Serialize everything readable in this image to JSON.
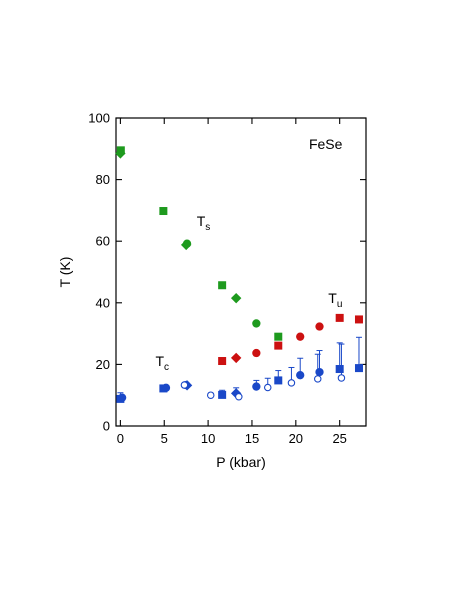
{
  "chart_data": {
    "type": "scatter",
    "xlabel": "P (kbar)",
    "ylabel": "T (K)",
    "xlim": [
      -0.5,
      28
    ],
    "ylim": [
      0,
      100
    ],
    "xticks": [
      0,
      5,
      10,
      15,
      20,
      25
    ],
    "yticks": [
      0,
      20,
      40,
      60,
      80,
      100
    ],
    "grid": false,
    "annotations": [
      {
        "text": "FeSe",
        "sub": "",
        "x": 21.5,
        "y": 90
      },
      {
        "text": "T",
        "sub": "s",
        "x": 8.7,
        "y": 65
      },
      {
        "text": "T",
        "sub": "u",
        "x": 23.7,
        "y": 40
      },
      {
        "text": "T",
        "sub": "c",
        "x": 4.0,
        "y": 19.5
      }
    ],
    "colors": {
      "Ts": "#1e9a1e",
      "Tu": "#cc1111",
      "Tc": "#1a48c8"
    },
    "series": [
      {
        "group": "Ts",
        "marker": "square",
        "filled": true,
        "points": [
          [
            0.05,
            89.5
          ],
          [
            4.9,
            69.8
          ],
          [
            11.6,
            45.7
          ],
          [
            18.0,
            29.0
          ]
        ]
      },
      {
        "group": "Ts",
        "marker": "diamond",
        "filled": true,
        "points": [
          [
            0.0,
            88.5
          ],
          [
            7.5,
            58.8
          ],
          [
            13.2,
            41.5
          ]
        ]
      },
      {
        "group": "Ts",
        "marker": "circle",
        "filled": true,
        "points": [
          [
            7.6,
            59.2
          ],
          [
            15.5,
            33.3
          ]
        ]
      },
      {
        "group": "Tu",
        "marker": "square",
        "filled": true,
        "points": [
          [
            11.6,
            21.1
          ],
          [
            18.0,
            26.1
          ],
          [
            25.0,
            35.1
          ],
          [
            27.2,
            34.6
          ]
        ]
      },
      {
        "group": "Tu",
        "marker": "diamond",
        "filled": true,
        "points": [
          [
            13.2,
            22.1
          ]
        ]
      },
      {
        "group": "Tu",
        "marker": "circle",
        "filled": true,
        "points": [
          [
            15.5,
            23.7
          ],
          [
            20.5,
            29.0
          ],
          [
            22.7,
            32.3
          ]
        ]
      },
      {
        "group": "Tc",
        "marker": "square",
        "filled": true,
        "points": [
          [
            0.0,
            8.8
          ],
          [
            4.9,
            12.2
          ],
          [
            11.6,
            10.1
          ],
          [
            18.0,
            14.8
          ],
          [
            25.0,
            18.5
          ],
          [
            27.2,
            18.8
          ]
        ],
        "errors": [
          [
            0,
            2.0
          ],
          [
            0,
            0
          ],
          [
            0,
            1.5
          ],
          [
            0,
            3.2
          ],
          [
            0,
            8.5
          ],
          [
            0,
            10.0
          ]
        ]
      },
      {
        "group": "Tc",
        "marker": "circle",
        "filled": true,
        "points": [
          [
            0.2,
            9.2
          ],
          [
            5.2,
            12.4
          ],
          [
            7.5,
            13.3
          ],
          [
            15.5,
            12.8
          ],
          [
            20.5,
            16.5
          ],
          [
            22.7,
            17.5
          ]
        ],
        "errors": [
          [
            0,
            0
          ],
          [
            0,
            0
          ],
          [
            0,
            0
          ],
          [
            0,
            2.0
          ],
          [
            0,
            5.5
          ],
          [
            0,
            7.0
          ]
        ]
      },
      {
        "group": "Tc",
        "marker": "diamond",
        "filled": true,
        "points": [
          [
            7.6,
            13.2
          ],
          [
            13.2,
            10.6
          ]
        ],
        "errors": [
          [
            0,
            0
          ],
          [
            0,
            1.8
          ]
        ]
      },
      {
        "group": "Tc",
        "marker": "circle",
        "filled": false,
        "points": [
          [
            7.3,
            13.3
          ],
          [
            10.3,
            10.0
          ],
          [
            13.5,
            9.5
          ],
          [
            16.8,
            12.5
          ],
          [
            19.5,
            14.0
          ],
          [
            22.5,
            15.3
          ],
          [
            25.2,
            15.6
          ]
        ],
        "errors": [
          [
            0,
            0
          ],
          [
            0,
            0
          ],
          [
            0,
            0
          ],
          [
            0,
            3.0
          ],
          [
            0,
            5.0
          ],
          [
            0,
            8.0
          ],
          [
            0,
            11.0
          ]
        ]
      }
    ]
  }
}
